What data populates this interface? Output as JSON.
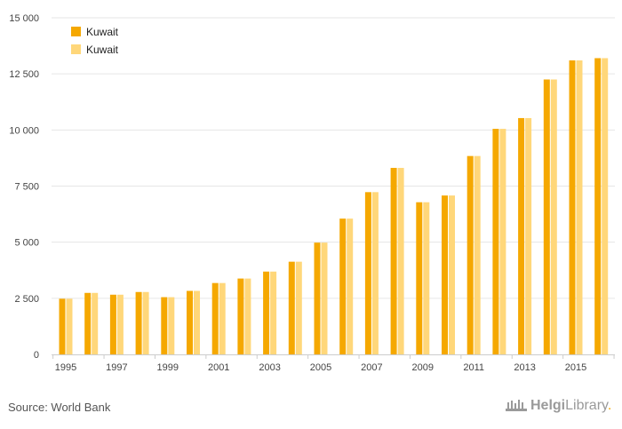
{
  "chart_data": {
    "type": "bar",
    "title": "",
    "xlabel": "",
    "ylabel": "",
    "ylim": [
      0,
      15000
    ],
    "yticks": [
      "0",
      "2 500",
      "5 000",
      "7 500",
      "10 000",
      "12 500",
      "15 000"
    ],
    "ytick_values": [
      0,
      2500,
      5000,
      7500,
      10000,
      12500,
      15000
    ],
    "categories": [
      "1995",
      "1996",
      "1997",
      "1998",
      "1999",
      "2000",
      "2001",
      "2002",
      "2003",
      "2004",
      "2005",
      "2006",
      "2007",
      "2008",
      "2009",
      "2010",
      "2011",
      "2012",
      "2013",
      "2014",
      "2015",
      "2016"
    ],
    "xtick_labels": [
      "1995",
      "1997",
      "1999",
      "2001",
      "2003",
      "2005",
      "2007",
      "2009",
      "2011",
      "2013",
      "2015"
    ],
    "series": [
      {
        "name": "Kuwait",
        "color": "#f5a800",
        "values": [
          2480,
          2740,
          2660,
          2780,
          2550,
          2830,
          3180,
          3380,
          3690,
          4130,
          4980,
          6050,
          7230,
          8310,
          6780,
          7080,
          8840,
          10050,
          10530,
          12250,
          13100,
          13200
        ]
      },
      {
        "name": "Kuwait",
        "color": "#ffd77a",
        "values": [
          2480,
          2740,
          2660,
          2780,
          2550,
          2830,
          3180,
          3380,
          3690,
          4130,
          4980,
          6050,
          7230,
          8310,
          6780,
          7080,
          8840,
          10050,
          10530,
          12250,
          13100,
          13200
        ]
      }
    ],
    "grid": true,
    "legend_position": "top-left"
  },
  "footer": {
    "source": "Source: World Bank",
    "logo_bold": "Helgi",
    "logo_rest": "Library",
    "logo_dot": "."
  }
}
